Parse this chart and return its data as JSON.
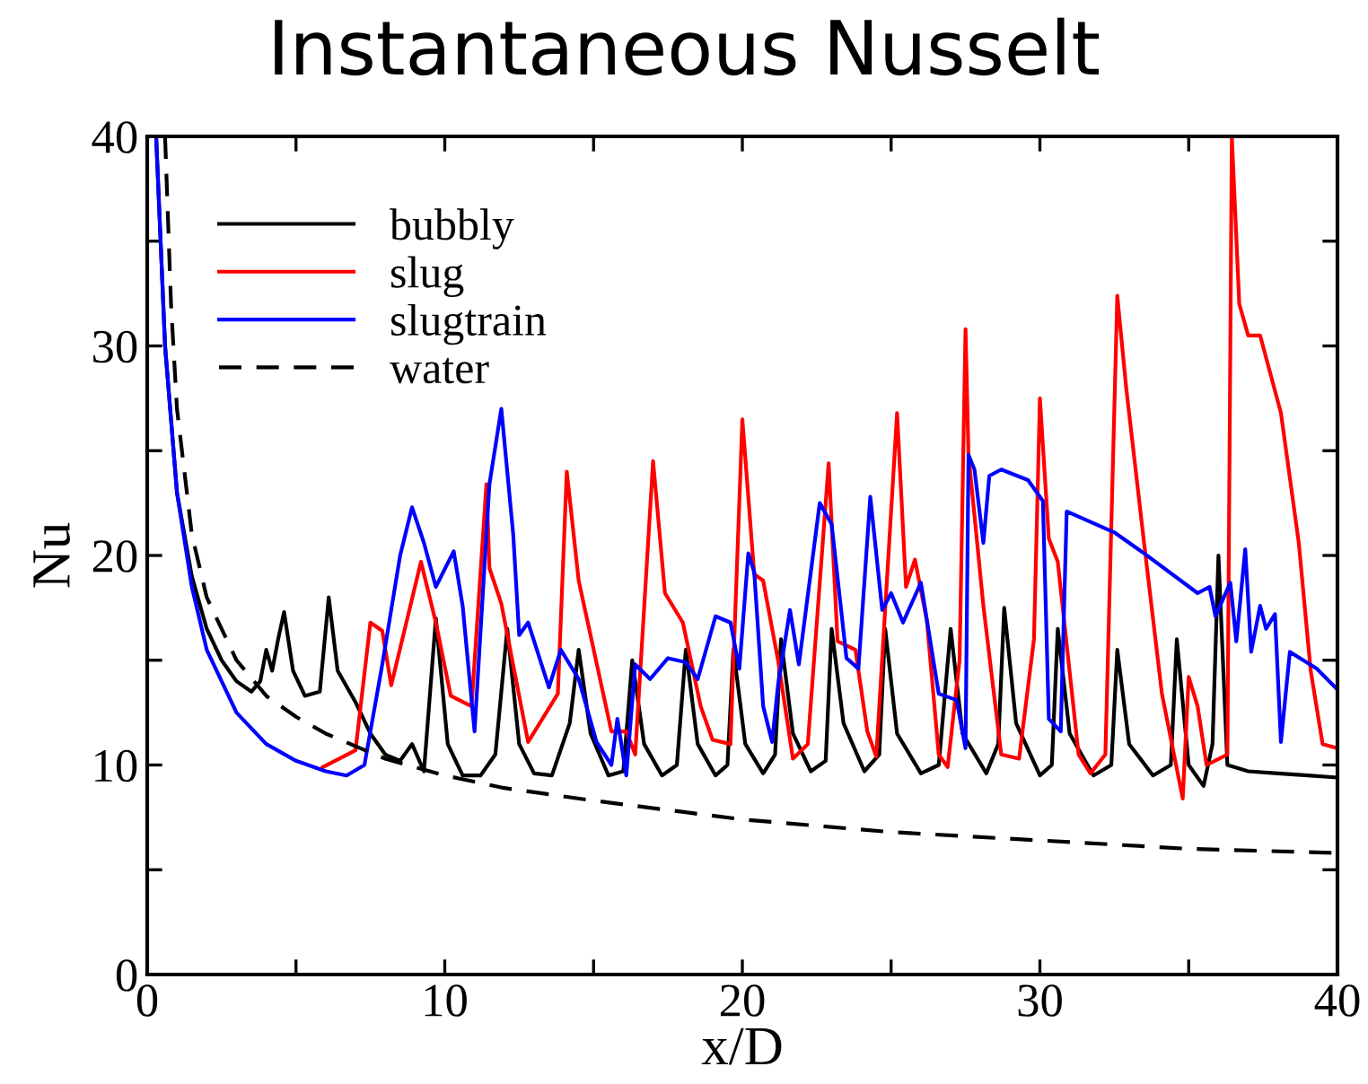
{
  "chart_data": {
    "type": "line",
    "title": "Instantaneous Nusselt",
    "xlabel": "x/D",
    "ylabel": "Nu",
    "xlim": [
      0,
      40
    ],
    "ylim": [
      0,
      40
    ],
    "xticks": [
      0,
      {
        "value": 5,
        "label": null
      },
      10,
      {
        "value": 15,
        "label": null
      },
      20,
      {
        "value": 25,
        "label": null
      },
      30,
      {
        "value": 35,
        "label": null
      },
      40
    ],
    "yticks": [
      0,
      {
        "value": 5,
        "label": null
      },
      10,
      {
        "value": 15,
        "label": null
      },
      20,
      {
        "value": 25,
        "label": null
      },
      30,
      {
        "value": 35,
        "label": null
      },
      40
    ],
    "grid": false,
    "legend": "top left",
    "marker": "none",
    "series": [
      {
        "name": "bubbly",
        "color": "#000000",
        "line_style": "solid",
        "x": [
          0.3,
          0.6,
          1,
          1.5,
          2,
          2.5,
          3,
          3.5,
          3.8,
          4.0,
          4.2,
          4.4,
          4.6,
          4.9,
          5.3,
          5.8,
          6.1,
          6.4,
          7,
          7.5,
          8,
          8.5,
          8.9,
          9.3,
          9.7,
          10.1,
          10.6,
          11.2,
          11.7,
          12.1,
          12.5,
          13,
          13.6,
          14.2,
          14.5,
          14.9,
          15.5,
          16,
          16.3,
          16.7,
          17.3,
          17.8,
          18.1,
          18.5,
          19.1,
          19.5,
          19.7,
          20.1,
          20.7,
          21.1,
          21.3,
          21.7,
          22.3,
          22.8,
          23,
          23.4,
          24.1,
          24.6,
          24.8,
          25.2,
          26,
          26.6,
          27,
          27.4,
          28.2,
          28.6,
          28.8,
          29.2,
          30,
          30.4,
          30.6,
          31,
          31.8,
          32.4,
          32.6,
          33,
          33.8,
          34.4,
          34.6,
          35,
          35.5,
          35.8,
          36,
          36.3,
          37,
          38,
          39,
          40
        ],
        "values": [
          40,
          30,
          23,
          19,
          16.5,
          15,
          14,
          13.5,
          14,
          15.5,
          14.5,
          16,
          17.3,
          14.5,
          13.3,
          13.5,
          18,
          14.5,
          13,
          11.5,
          10.5,
          10.2,
          11,
          9.7,
          17,
          11,
          9.5,
          9.5,
          10.5,
          16.5,
          11,
          9.6,
          9.5,
          12,
          15.5,
          11.5,
          9.5,
          9.7,
          15,
          11,
          9.5,
          10,
          15.5,
          11,
          9.5,
          10,
          15.5,
          11,
          9.6,
          10.5,
          16,
          11.5,
          9.7,
          10.2,
          16.5,
          12,
          9.7,
          10.5,
          16.5,
          11.5,
          9.6,
          10,
          16.5,
          11.5,
          9.6,
          11,
          17.5,
          12,
          9.5,
          10,
          16.5,
          11.5,
          9.5,
          10,
          15.5,
          11,
          9.5,
          10,
          16,
          10,
          9,
          11,
          20,
          10,
          9.7,
          9.6,
          9.5,
          9.4
        ]
      },
      {
        "name": "slug",
        "color": "#ff0000",
        "line_style": "solid",
        "x": [
          5.9,
          7.0,
          7.5,
          7.9,
          8.2,
          9.2,
          9.7,
          10.2,
          10.9,
          11.4,
          11.5,
          11.9,
          12.8,
          13.8,
          14.1,
          14.5,
          15.6,
          16.1,
          16.4,
          17.0,
          17.4,
          18.0,
          18.6,
          19.0,
          19.6,
          20.0,
          20.4,
          20.7,
          21.2,
          21.7,
          22.2,
          22.9,
          23.2,
          23.8,
          24.2,
          24.5,
          25.2,
          25.5,
          25.8,
          26.2,
          26.6,
          26.9,
          27.3,
          27.5,
          27.6,
          28.1,
          28.7,
          29.3,
          29.8,
          30.0,
          30.3,
          30.6,
          31.3,
          31.7,
          32.2,
          32.6,
          32.9,
          33.5,
          34.1,
          34.8,
          35.0,
          35.3,
          35.6,
          36.3,
          36.45,
          36.7,
          37.0,
          37.4,
          38.1,
          38.7,
          39.1,
          39.5,
          40
        ],
        "values": [
          9.9,
          10.7,
          16.8,
          16.4,
          13.8,
          19.7,
          16.8,
          13.3,
          12.8,
          23.4,
          19.4,
          17.7,
          11.1,
          13.4,
          24,
          18.8,
          11.6,
          11.6,
          10.5,
          24.5,
          18.2,
          16.8,
          12.8,
          11.2,
          11,
          26.5,
          19.1,
          18.8,
          15,
          10.3,
          11,
          24.4,
          15.9,
          15.5,
          11.6,
          10.4,
          26.8,
          18.5,
          19.8,
          16.9,
          10.5,
          9.9,
          15,
          30.8,
          24.8,
          17.6,
          10.5,
          10.3,
          16,
          27.5,
          20.8,
          19.7,
          10.5,
          9.6,
          10.5,
          32.4,
          28,
          20.6,
          13.4,
          8.4,
          14.2,
          12.8,
          10,
          10.5,
          40,
          32,
          30.5,
          30.5,
          26.8,
          20.6,
          14.5,
          11,
          10.8
        ]
      },
      {
        "name": "slugtrain",
        "color": "#0000ff",
        "line_style": "solid",
        "x": [
          0.3,
          0.6,
          1,
          1.5,
          2,
          3,
          4,
          5,
          6,
          6.7,
          7.3,
          7.9,
          8.5,
          8.9,
          9.3,
          9.7,
          10.3,
          10.6,
          11.0,
          11.5,
          11.9,
          12.3,
          12.5,
          12.8,
          13.5,
          13.9,
          14.5,
          15.1,
          15.6,
          15.8,
          16.1,
          16.4,
          16.9,
          17.5,
          18.1,
          18.5,
          19.1,
          19.6,
          19.9,
          20.2,
          20.4,
          20.7,
          21.0,
          21.2,
          21.6,
          21.9,
          22.6,
          23.0,
          23.5,
          23.9,
          24.3,
          24.7,
          25.0,
          25.4,
          26.0,
          26.6,
          27.2,
          27.5,
          27.6,
          27.8,
          28.1,
          28.3,
          28.7,
          29.6,
          30.1,
          30.3,
          30.7,
          30.9,
          32.5,
          33.5,
          35.3,
          35.7,
          35.9,
          36.4,
          36.6,
          36.9,
          37.1,
          37.4,
          37.6,
          37.9,
          38.1,
          38.4,
          39.3,
          40
        ],
        "values": [
          40,
          30,
          23,
          18.5,
          15.5,
          12.5,
          11,
          10.2,
          9.7,
          9.5,
          10,
          14.8,
          20,
          22.3,
          20.6,
          18.5,
          20.2,
          17.6,
          11.6,
          23.4,
          27,
          21,
          16.2,
          16.8,
          13.7,
          15.5,
          14.1,
          11.1,
          10,
          12.2,
          9.5,
          14.8,
          14.1,
          15.1,
          14.9,
          14.1,
          17.1,
          16.8,
          14.6,
          20.1,
          19.2,
          12.8,
          11.1,
          13.8,
          17.4,
          14.8,
          22.5,
          21.5,
          15.1,
          14.6,
          22.8,
          17.4,
          18.2,
          16.8,
          18.7,
          13.4,
          13.1,
          10.8,
          24.8,
          24.1,
          20.6,
          23.8,
          24.1,
          23.6,
          22.6,
          12.2,
          11.6,
          22.1,
          21.1,
          20.1,
          18.2,
          18.5,
          17.1,
          18.7,
          15.9,
          20.3,
          15.4,
          17.6,
          16.5,
          17.2,
          11.1,
          15.4,
          14.6,
          13.6
        ]
      },
      {
        "name": "water",
        "color": "#000000",
        "line_style": "dashed",
        "x": [
          0.6,
          0.8,
          1,
          1.5,
          2,
          3,
          4,
          5,
          6,
          8,
          10,
          12,
          15,
          20,
          25,
          30,
          35,
          40
        ],
        "values": [
          40,
          32,
          27,
          21,
          18,
          15,
          13.3,
          12.3,
          11.5,
          10.3,
          9.5,
          8.9,
          8.3,
          7.4,
          6.8,
          6.4,
          6.0,
          5.8
        ]
      }
    ]
  }
}
